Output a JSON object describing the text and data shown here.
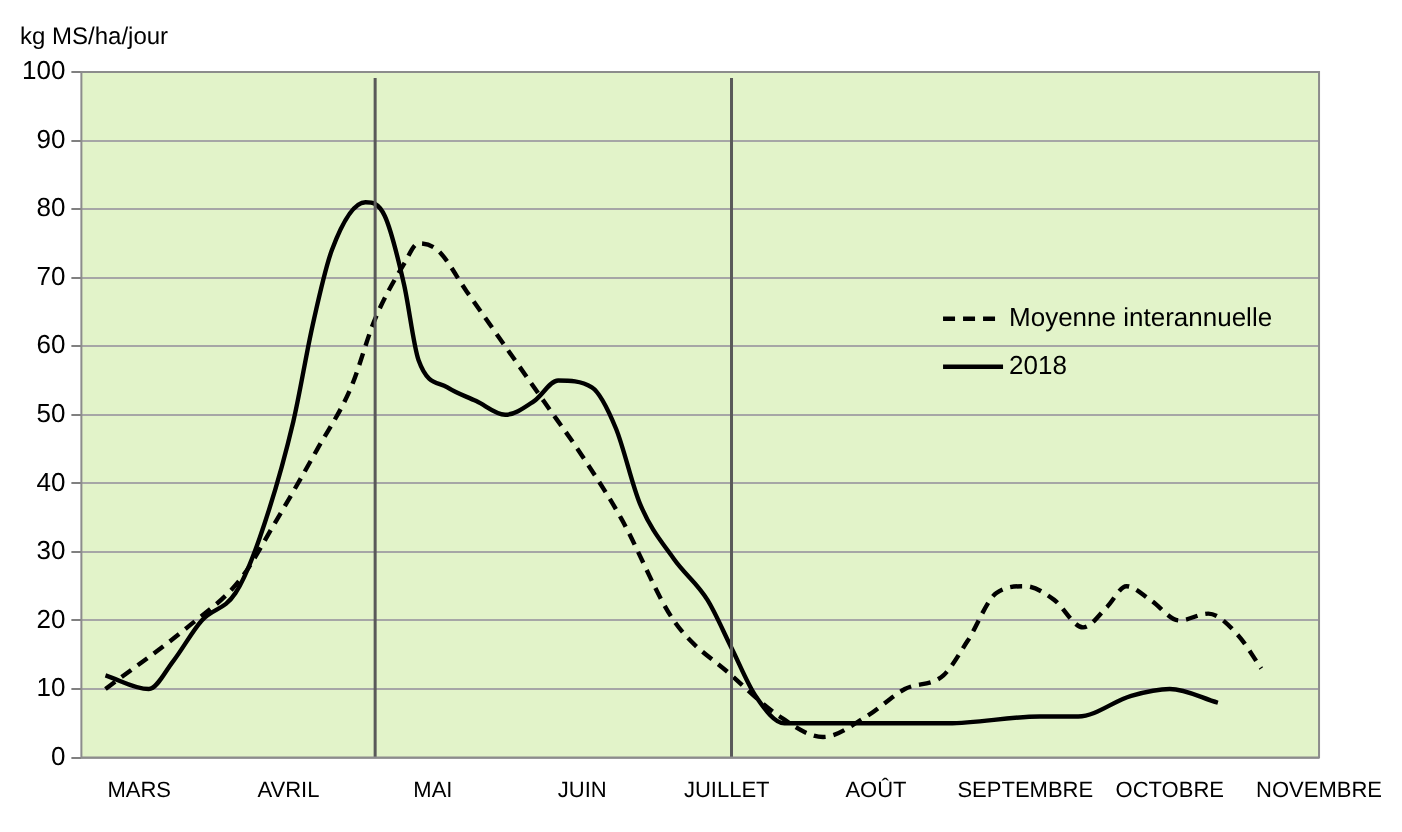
{
  "chart_data": {
    "type": "line",
    "ylabel": "kg MS/ha/jour",
    "xlim": [
      "--03-04",
      "--11-16"
    ],
    "xticks": [
      {
        "value": "--03-16",
        "label": "MARS"
      },
      {
        "value": "--04-16",
        "label": "AVRIL"
      },
      {
        "value": "--05-16",
        "label": "MAI"
      },
      {
        "value": "--06-16",
        "label": "JUIN"
      },
      {
        "value": "--07-16",
        "label": "JUILLET"
      },
      {
        "value": "--08-16",
        "label": "AOÛT"
      },
      {
        "value": "--09-16",
        "label": "SEPTEMBRE"
      },
      {
        "value": "--10-16",
        "label": "OCTOBRE"
      },
      {
        "value": "--11-16",
        "label": "NOVEMBRE"
      }
    ],
    "ylim": [
      0,
      100
    ],
    "yticks": [
      0,
      10,
      20,
      30,
      40,
      50,
      60,
      70,
      80,
      90,
      100
    ],
    "grid": "y",
    "legend": "right",
    "marker": "none",
    "ref_lines": [
      {
        "axis": "x",
        "value": "--05-04",
        "color": "#595959"
      },
      {
        "axis": "x",
        "value": "--07-17",
        "color": "#595959"
      }
    ],
    "series": [
      {
        "name": "Moyenne interannuelle",
        "color": "#000000",
        "line_style": "dashed",
        "x": [
          "--03-09",
          "--03-26",
          "--04-06",
          "--04-13",
          "--04-22",
          "--04-29",
          "--05-04",
          "--05-10",
          "--05-13",
          "--05-17",
          "--05-23",
          "--05-31",
          "--06-08",
          "--06-16",
          "--06-24",
          "--07-05",
          "--07-17",
          "--07-27",
          "--08-05",
          "--08-14",
          "--08-22",
          "--08-30",
          "--09-04",
          "--09-10",
          "--09-16",
          "--09-22",
          "--09-28",
          "--10-03",
          "--10-07",
          "--10-12",
          "--10-18",
          "--10-24",
          "--10-30",
          "--11-04"
        ],
        "values": [
          10,
          19,
          26,
          34,
          45,
          54,
          64,
          72,
          75,
          74,
          68,
          60,
          52,
          44,
          35,
          20,
          12,
          6,
          3,
          6,
          10,
          12,
          17,
          24,
          25,
          23,
          19,
          22,
          25,
          23,
          20,
          21,
          18,
          13
        ]
      },
      {
        "name": "2018",
        "color": "#000000",
        "line_style": "solid",
        "x": [
          "--03-09",
          "--03-18",
          "--03-23",
          "--03-29",
          "--04-05",
          "--04-10",
          "--04-17",
          "--04-21",
          "--04-25",
          "--05-02",
          "--05-06",
          "--05-10",
          "--05-13",
          "--05-19",
          "--05-25",
          "--05-31",
          "--06-06",
          "--06-11",
          "--06-18",
          "--06-23",
          "--06-28",
          "--07-05",
          "--07-12",
          "--07-17",
          "--07-22",
          "--07-28",
          "--08-04",
          "--08-15",
          "--08-31",
          "--09-19",
          "--09-27",
          "--10-08",
          "--10-16",
          "--10-26"
        ],
        "values": [
          12,
          10,
          14,
          20,
          24,
          32,
          49,
          63,
          74,
          81,
          79,
          69,
          58,
          54,
          52,
          50,
          52,
          55,
          54,
          48,
          37,
          29,
          23,
          16,
          9,
          5,
          5,
          5,
          5,
          6,
          6,
          9,
          10,
          8
        ]
      }
    ]
  }
}
